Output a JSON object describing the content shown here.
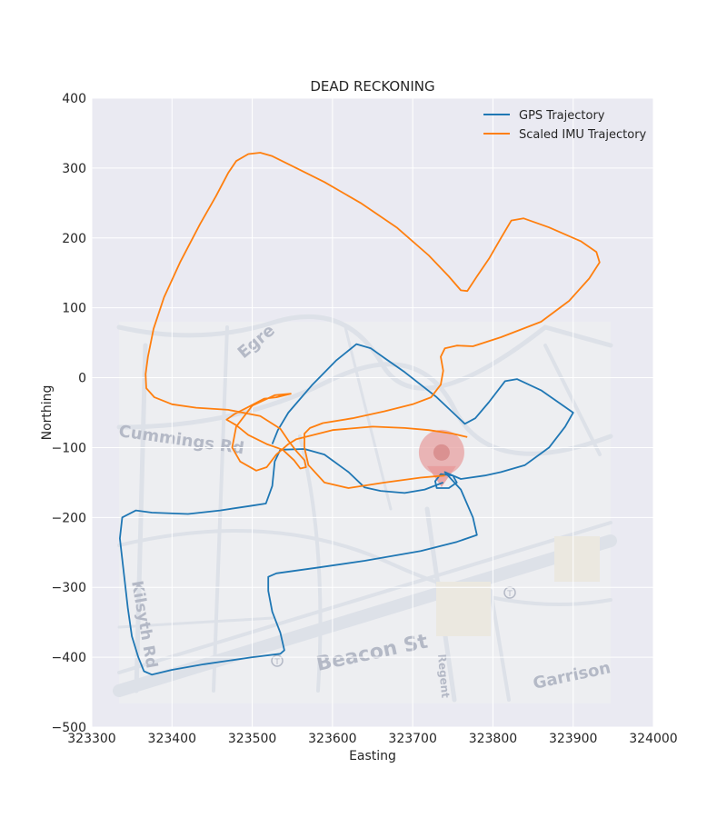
{
  "chart_data": {
    "type": "line",
    "title": "DEAD RECKONING",
    "xlabel": "Easting",
    "ylabel": "Northing",
    "xlim": [
      323300,
      324000
    ],
    "ylim": [
      -500,
      400
    ],
    "xticks": [
      323300,
      323400,
      323500,
      323600,
      323700,
      323800,
      323900,
      324000
    ],
    "yticks": [
      400,
      300,
      200,
      100,
      0,
      -100,
      -200,
      -300,
      -400,
      -500
    ],
    "xtick_labels": [
      "323300",
      "323400",
      "323500",
      "323600",
      "323700",
      "323800",
      "323900",
      "324000"
    ],
    "ytick_labels": [
      "400",
      "300",
      "200",
      "100",
      "0",
      "−100",
      "−200",
      "−300",
      "−400",
      "−500"
    ],
    "grid": true,
    "legend_position": "top-right",
    "background_map": {
      "extent_x": [
        323335,
        323950
      ],
      "extent_y": [
        -460,
        80
      ],
      "labels": [
        "Egre",
        "Cummings Rd",
        "Kilsyth Rd",
        "Beacon St",
        "Regent",
        "Garrison"
      ],
      "marker": {
        "x": 323736,
        "y": -107,
        "color": "#e79b9b"
      }
    },
    "series": [
      {
        "name": "GPS Trajectory",
        "color": "#1f77b4",
        "points": [
          [
            323525,
            -95
          ],
          [
            323532,
            -75
          ],
          [
            323545,
            -50
          ],
          [
            323575,
            -10
          ],
          [
            323605,
            25
          ],
          [
            323630,
            48
          ],
          [
            323648,
            42
          ],
          [
            323665,
            28
          ],
          [
            323690,
            8
          ],
          [
            323730,
            -28
          ],
          [
            323765,
            -66
          ],
          [
            323778,
            -58
          ],
          [
            323795,
            -35
          ],
          [
            323815,
            -5
          ],
          [
            323830,
            -2
          ],
          [
            323860,
            -18
          ],
          [
            323900,
            -50
          ],
          [
            323890,
            -70
          ],
          [
            323870,
            -100
          ],
          [
            323840,
            -125
          ],
          [
            323810,
            -135
          ],
          [
            323790,
            -140
          ],
          [
            323760,
            -145
          ],
          [
            323750,
            -140
          ],
          [
            323735,
            -138
          ],
          [
            323728,
            -148
          ],
          [
            323730,
            -158
          ],
          [
            323745,
            -158
          ],
          [
            323755,
            -150
          ],
          [
            323750,
            -140
          ],
          [
            323740,
            -135
          ],
          [
            323760,
            -160
          ],
          [
            323775,
            -200
          ],
          [
            323780,
            -225
          ],
          [
            323755,
            -235
          ],
          [
            323710,
            -248
          ],
          [
            323640,
            -262
          ],
          [
            323580,
            -272
          ],
          [
            323530,
            -280
          ],
          [
            323520,
            -285
          ],
          [
            323520,
            -305
          ],
          [
            323525,
            -335
          ],
          [
            323535,
            -365
          ],
          [
            323540,
            -390
          ],
          [
            323535,
            -395
          ],
          [
            323500,
            -400
          ],
          [
            323440,
            -410
          ],
          [
            323400,
            -418
          ],
          [
            323375,
            -425
          ],
          [
            323365,
            -420
          ],
          [
            323358,
            -400
          ],
          [
            323350,
            -370
          ],
          [
            323345,
            -330
          ],
          [
            323340,
            -280
          ],
          [
            323335,
            -230
          ],
          [
            323338,
            -200
          ],
          [
            323355,
            -190
          ],
          [
            323375,
            -193
          ],
          [
            323420,
            -195
          ],
          [
            323460,
            -190
          ],
          [
            323500,
            -183
          ],
          [
            323517,
            -180
          ],
          [
            323525,
            -155
          ],
          [
            323528,
            -120
          ],
          [
            323535,
            -103
          ],
          [
            323565,
            -102
          ],
          [
            323590,
            -110
          ],
          [
            323620,
            -135
          ],
          [
            323640,
            -157
          ],
          [
            323660,
            -162
          ],
          [
            323690,
            -165
          ],
          [
            323715,
            -160
          ],
          [
            323738,
            -150
          ]
        ]
      },
      {
        "name": "Scaled IMU Trajectory",
        "color": "#ff7f0e",
        "points": [
          [
            323740,
            -140
          ],
          [
            323710,
            -143
          ],
          [
            323665,
            -150
          ],
          [
            323620,
            -158
          ],
          [
            323590,
            -150
          ],
          [
            323570,
            -125
          ],
          [
            323565,
            -100
          ],
          [
            323565,
            -80
          ],
          [
            323572,
            -72
          ],
          [
            323588,
            -65
          ],
          [
            323625,
            -58
          ],
          [
            323665,
            -48
          ],
          [
            323700,
            -38
          ],
          [
            323723,
            -28
          ],
          [
            323735,
            -10
          ],
          [
            323738,
            10
          ],
          [
            323735,
            30
          ],
          [
            323740,
            42
          ],
          [
            323755,
            46
          ],
          [
            323775,
            45
          ],
          [
            323810,
            58
          ],
          [
            323860,
            80
          ],
          [
            323895,
            110
          ],
          [
            323920,
            142
          ],
          [
            323933,
            165
          ],
          [
            323929,
            180
          ],
          [
            323910,
            195
          ],
          [
            323870,
            215
          ],
          [
            323838,
            228
          ],
          [
            323823,
            225
          ],
          [
            323810,
            200
          ],
          [
            323795,
            170
          ],
          [
            323780,
            145
          ],
          [
            323768,
            124
          ],
          [
            323760,
            125
          ],
          [
            323745,
            145
          ],
          [
            323720,
            175
          ],
          [
            323680,
            215
          ],
          [
            323635,
            250
          ],
          [
            323590,
            280
          ],
          [
            323555,
            300
          ],
          [
            323525,
            317
          ],
          [
            323510,
            322
          ],
          [
            323495,
            320
          ],
          [
            323480,
            310
          ],
          [
            323470,
            293
          ],
          [
            323455,
            260
          ],
          [
            323435,
            220
          ],
          [
            323410,
            165
          ],
          [
            323390,
            115
          ],
          [
            323377,
            70
          ],
          [
            323370,
            30
          ],
          [
            323367,
            5
          ],
          [
            323368,
            -15
          ],
          [
            323378,
            -28
          ],
          [
            323400,
            -38
          ],
          [
            323430,
            -43
          ],
          [
            323470,
            -46
          ],
          [
            323510,
            -55
          ],
          [
            323535,
            -73
          ],
          [
            323545,
            -90
          ],
          [
            323555,
            -105
          ],
          [
            323565,
            -118
          ],
          [
            323567,
            -128
          ],
          [
            323560,
            -130
          ],
          [
            323552,
            -118
          ],
          [
            323538,
            -103
          ],
          [
            323518,
            -95
          ],
          [
            323495,
            -82
          ],
          [
            323480,
            -68
          ],
          [
            323468,
            -60
          ],
          [
            323478,
            -52
          ],
          [
            323495,
            -42
          ],
          [
            323515,
            -30
          ],
          [
            323530,
            -28
          ],
          [
            323548,
            -23
          ],
          [
            323528,
            -25
          ],
          [
            323500,
            -40
          ],
          [
            323480,
            -70
          ],
          [
            323475,
            -100
          ],
          [
            323485,
            -120
          ],
          [
            323505,
            -133
          ],
          [
            323518,
            -128
          ],
          [
            323530,
            -110
          ],
          [
            323545,
            -95
          ],
          [
            323555,
            -88
          ],
          [
            323600,
            -75
          ],
          [
            323650,
            -70
          ],
          [
            323690,
            -72
          ],
          [
            323720,
            -75
          ],
          [
            323750,
            -80
          ],
          [
            323768,
            -85
          ]
        ]
      }
    ]
  }
}
